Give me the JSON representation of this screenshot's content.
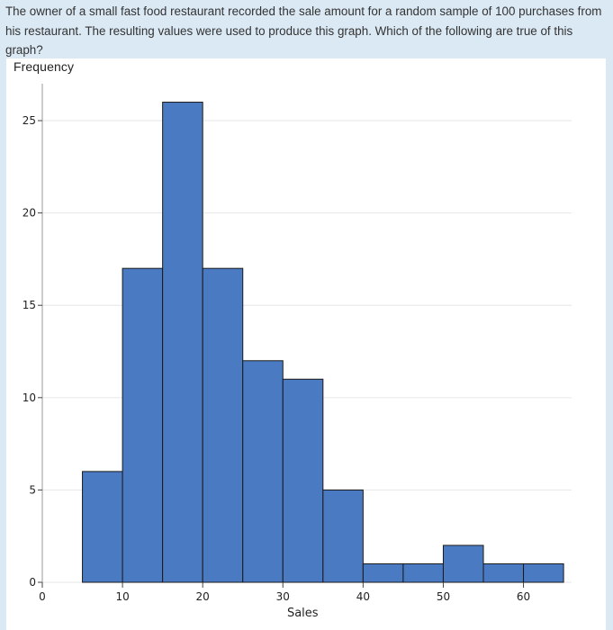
{
  "question": {
    "text": "The owner of a small fast food restaurant recorded the sale amount for a random sample of 100 purchases from his restaurant. The resulting values were used to produce this graph. Which of the following are true of this graph?"
  },
  "chart_data": {
    "type": "bar",
    "title": "",
    "xlabel": "Sales",
    "ylabel": "Frequency",
    "bin_width": 5,
    "bins": [
      {
        "start": 5,
        "end": 10,
        "count": 6
      },
      {
        "start": 10,
        "end": 15,
        "count": 17
      },
      {
        "start": 15,
        "end": 20,
        "count": 26
      },
      {
        "start": 20,
        "end": 25,
        "count": 17
      },
      {
        "start": 25,
        "end": 30,
        "count": 12
      },
      {
        "start": 30,
        "end": 35,
        "count": 11
      },
      {
        "start": 35,
        "end": 40,
        "count": 5
      },
      {
        "start": 40,
        "end": 45,
        "count": 1
      },
      {
        "start": 45,
        "end": 50,
        "count": 1
      },
      {
        "start": 50,
        "end": 55,
        "count": 2
      },
      {
        "start": 55,
        "end": 60,
        "count": 1
      },
      {
        "start": 60,
        "end": 65,
        "count": 1
      }
    ],
    "x_ticks": [
      0,
      10,
      20,
      30,
      40,
      50,
      60
    ],
    "y_ticks": [
      0,
      5,
      10,
      15,
      20,
      25
    ],
    "xlim": [
      0,
      66
    ],
    "ylim": [
      0,
      27
    ],
    "grid": true,
    "bar_color": "#4a7ac1",
    "bar_edge_color": "#1a1a1a",
    "grid_color": "#e6e6e6",
    "axis_color": "#999999"
  }
}
